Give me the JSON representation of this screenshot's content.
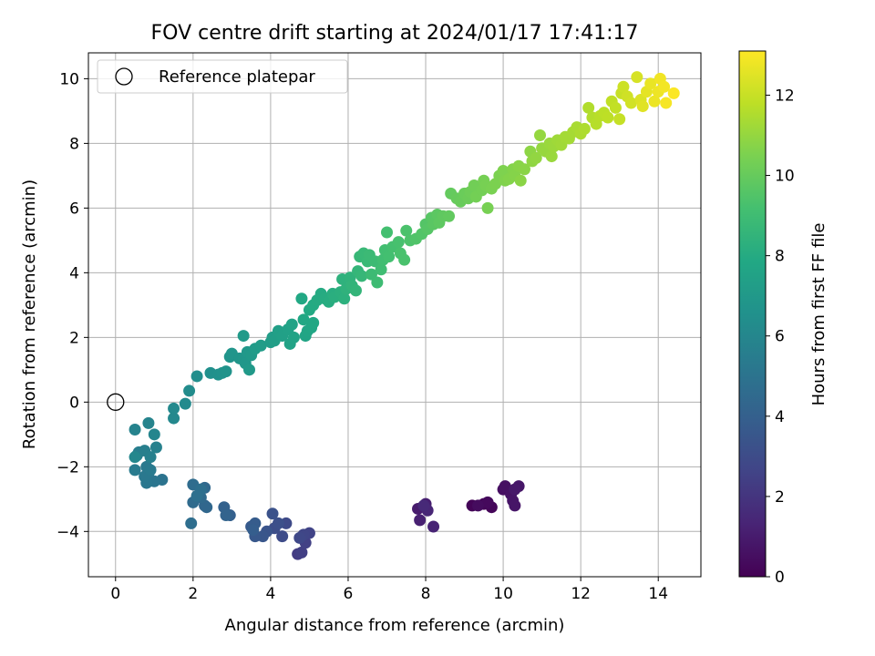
{
  "chart_data": {
    "type": "scatter",
    "title": "FOV centre drift starting at 2024/01/17 17:41:17",
    "xlabel": "Angular distance from reference (arcmin)",
    "ylabel": "Rotation from reference (arcmin)",
    "xlim": [
      -0.7,
      15.1
    ],
    "ylim": [
      -5.4,
      10.8
    ],
    "xticks": [
      0,
      2,
      4,
      6,
      8,
      10,
      12,
      14
    ],
    "yticks": [
      -4,
      -2,
      0,
      2,
      4,
      6,
      8,
      10
    ],
    "xtick_labels": [
      "0",
      "2",
      "4",
      "6",
      "8",
      "10",
      "12",
      "14"
    ],
    "ytick_labels": [
      "−4",
      "−2",
      "0",
      "2",
      "4",
      "6",
      "8",
      "10"
    ],
    "grid": true,
    "legend": {
      "position": "top-left",
      "label": "Reference platepar"
    },
    "reference_point": {
      "x": 0,
      "y": 0
    },
    "colorbar": {
      "label": "Hours from first FF file",
      "min": 0,
      "max": 13.1,
      "ticks": [
        0,
        2,
        4,
        6,
        8,
        10,
        12
      ],
      "tick_labels": [
        "0",
        "2",
        "4",
        "6",
        "8",
        "10",
        "12"
      ],
      "colormap": "viridis"
    },
    "points": [
      [
        9.2,
        -3.2,
        0.1
      ],
      [
        9.5,
        -3.15,
        0.15
      ],
      [
        9.7,
        -3.25,
        0.2
      ],
      [
        9.6,
        -3.1,
        0.3
      ],
      [
        9.35,
        -3.2,
        0.4
      ],
      [
        10.0,
        -2.7,
        0.5
      ],
      [
        10.05,
        -2.6,
        0.55
      ],
      [
        10.2,
        -2.85,
        0.6
      ],
      [
        10.25,
        -3.05,
        0.7
      ],
      [
        10.3,
        -3.2,
        0.75
      ],
      [
        10.4,
        -2.6,
        0.8
      ],
      [
        10.3,
        -2.7,
        0.85
      ],
      [
        7.8,
        -3.3,
        1.0
      ],
      [
        8.0,
        -3.15,
        1.1
      ],
      [
        7.85,
        -3.65,
        1.2
      ],
      [
        8.2,
        -3.85,
        1.3
      ],
      [
        8.05,
        -3.35,
        1.4
      ],
      [
        7.95,
        -3.2,
        1.5
      ],
      [
        4.7,
        -4.7,
        2.3
      ],
      [
        4.8,
        -4.65,
        2.4
      ],
      [
        4.9,
        -4.35,
        2.5
      ],
      [
        5.0,
        -4.05,
        2.6
      ],
      [
        4.85,
        -4.1,
        2.7
      ],
      [
        4.75,
        -4.2,
        2.8
      ],
      [
        4.4,
        -3.75,
        2.9
      ],
      [
        4.3,
        -4.15,
        3.0
      ],
      [
        4.1,
        -3.9,
        3.1
      ],
      [
        4.2,
        -3.75,
        3.2
      ],
      [
        4.05,
        -3.45,
        3.3
      ],
      [
        3.9,
        -4.0,
        3.4
      ],
      [
        3.8,
        -4.15,
        3.5
      ],
      [
        3.6,
        -4.15,
        3.6
      ],
      [
        3.5,
        -3.85,
        3.7
      ],
      [
        3.6,
        -3.75,
        3.8
      ],
      [
        3.55,
        -3.95,
        3.9
      ],
      [
        2.95,
        -3.5,
        4.0
      ],
      [
        2.8,
        -3.25,
        4.1
      ],
      [
        2.85,
        -3.5,
        4.2
      ],
      [
        2.3,
        -3.2,
        4.3
      ],
      [
        2.35,
        -3.25,
        4.35
      ],
      [
        2.3,
        -2.65,
        4.4
      ],
      [
        2.2,
        -2.95,
        4.5
      ],
      [
        2.0,
        -3.1,
        4.55
      ],
      [
        2.0,
        -2.55,
        4.6
      ],
      [
        1.95,
        -3.75,
        4.7
      ],
      [
        2.2,
        -2.7,
        4.75
      ],
      [
        2.1,
        -2.9,
        4.8
      ],
      [
        1.2,
        -2.4,
        5.0
      ],
      [
        1.0,
        -2.45,
        5.1
      ],
      [
        0.85,
        -2.2,
        5.15
      ],
      [
        0.8,
        -2.5,
        5.2
      ],
      [
        0.75,
        -2.3,
        5.25
      ],
      [
        0.8,
        -2.0,
        5.3
      ],
      [
        0.9,
        -2.1,
        5.35
      ],
      [
        0.5,
        -2.1,
        5.4
      ],
      [
        0.55,
        -1.65,
        5.5
      ],
      [
        0.6,
        -1.55,
        5.55
      ],
      [
        0.75,
        -1.5,
        5.6
      ],
      [
        0.9,
        -1.7,
        5.65
      ],
      [
        1.05,
        -1.4,
        5.7
      ],
      [
        0.5,
        -0.85,
        5.8
      ],
      [
        0.85,
        -0.65,
        5.85
      ],
      [
        1.0,
        -1.0,
        5.9
      ],
      [
        0.5,
        -1.7,
        6.0
      ],
      [
        1.5,
        -0.5,
        6.1
      ],
      [
        1.5,
        -0.2,
        6.15
      ],
      [
        1.8,
        -0.05,
        6.2
      ],
      [
        1.9,
        0.35,
        6.3
      ],
      [
        2.1,
        0.8,
        6.4
      ],
      [
        2.45,
        0.9,
        6.5
      ],
      [
        2.65,
        0.85,
        6.55
      ],
      [
        2.75,
        0.9,
        6.6
      ],
      [
        2.85,
        0.95,
        6.65
      ],
      [
        2.95,
        1.4,
        6.7
      ],
      [
        3.0,
        1.5,
        6.75
      ],
      [
        3.2,
        1.35,
        6.8
      ],
      [
        3.3,
        1.3,
        6.85
      ],
      [
        3.35,
        1.2,
        6.9
      ],
      [
        3.4,
        1.55,
        6.95
      ],
      [
        3.45,
        1.0,
        7.0
      ],
      [
        3.5,
        1.45,
        7.0
      ],
      [
        3.3,
        2.05,
        7.05
      ],
      [
        3.6,
        1.65,
        7.1
      ],
      [
        3.75,
        1.75,
        7.15
      ],
      [
        4.0,
        1.85,
        7.2
      ],
      [
        4.05,
        2.0,
        7.25
      ],
      [
        4.1,
        1.9,
        7.3
      ],
      [
        4.2,
        2.2,
        7.35
      ],
      [
        4.3,
        2.05,
        7.4
      ],
      [
        4.45,
        2.25,
        7.45
      ],
      [
        4.5,
        1.8,
        7.5
      ],
      [
        4.55,
        2.4,
        7.55
      ],
      [
        4.6,
        2.0,
        7.6
      ],
      [
        4.9,
        2.05,
        7.65
      ],
      [
        4.95,
        2.2,
        7.7
      ],
      [
        5.05,
        2.3,
        7.75
      ],
      [
        4.85,
        2.55,
        7.8
      ],
      [
        5.1,
        2.45,
        7.8
      ],
      [
        4.8,
        3.2,
        7.85
      ],
      [
        5.0,
        2.85,
        7.9
      ],
      [
        5.1,
        3.0,
        7.95
      ],
      [
        5.2,
        3.15,
        8.0
      ],
      [
        5.3,
        3.35,
        8.0
      ],
      [
        5.4,
        3.2,
        8.05
      ],
      [
        5.5,
        3.1,
        8.1
      ],
      [
        5.6,
        3.35,
        8.15
      ],
      [
        5.65,
        3.25,
        8.2
      ],
      [
        5.8,
        3.4,
        8.25
      ],
      [
        5.9,
        3.2,
        8.3
      ],
      [
        5.85,
        3.8,
        8.35
      ],
      [
        5.95,
        3.5,
        8.4
      ],
      [
        6.05,
        3.85,
        8.45
      ],
      [
        6.1,
        3.6,
        8.5
      ],
      [
        6.2,
        3.45,
        8.55
      ],
      [
        6.25,
        4.05,
        8.6
      ],
      [
        6.35,
        3.9,
        8.65
      ],
      [
        6.3,
        4.5,
        8.7
      ],
      [
        6.4,
        4.6,
        8.75
      ],
      [
        6.5,
        4.35,
        8.8
      ],
      [
        6.55,
        4.55,
        8.85
      ],
      [
        6.7,
        4.35,
        8.9
      ],
      [
        6.6,
        3.95,
        8.9
      ],
      [
        6.75,
        3.7,
        8.95
      ],
      [
        6.85,
        4.1,
        9.0
      ],
      [
        6.9,
        4.4,
        9.05
      ],
      [
        6.95,
        4.7,
        9.1
      ],
      [
        7.0,
        5.25,
        9.15
      ],
      [
        7.05,
        4.5,
        9.15
      ],
      [
        7.15,
        4.8,
        9.2
      ],
      [
        7.3,
        4.95,
        9.25
      ],
      [
        7.35,
        4.6,
        9.3
      ],
      [
        7.45,
        4.4,
        9.3
      ],
      [
        7.5,
        5.3,
        9.35
      ],
      [
        7.6,
        5.0,
        9.4
      ],
      [
        7.75,
        5.05,
        9.45
      ],
      [
        7.9,
        5.2,
        9.5
      ],
      [
        8.0,
        5.5,
        9.55
      ],
      [
        8.05,
        5.35,
        9.6
      ],
      [
        8.15,
        5.7,
        9.65
      ],
      [
        8.2,
        5.5,
        9.7
      ],
      [
        8.3,
        5.8,
        9.75
      ],
      [
        8.35,
        5.55,
        9.8
      ],
      [
        8.45,
        5.75,
        9.85
      ],
      [
        8.6,
        5.75,
        9.9
      ],
      [
        8.65,
        6.45,
        9.95
      ],
      [
        8.8,
        6.3,
        10.0
      ],
      [
        8.9,
        6.2,
        10.05
      ],
      [
        9.0,
        6.45,
        10.1
      ],
      [
        9.1,
        6.3,
        10.15
      ],
      [
        9.15,
        6.5,
        10.2
      ],
      [
        9.25,
        6.7,
        10.25
      ],
      [
        9.3,
        6.35,
        10.3
      ],
      [
        9.45,
        6.55,
        10.3
      ],
      [
        9.5,
        6.85,
        10.35
      ],
      [
        9.55,
        6.7,
        10.4
      ],
      [
        9.6,
        6.0,
        10.4
      ],
      [
        9.7,
        6.6,
        10.45
      ],
      [
        9.8,
        6.75,
        10.5
      ],
      [
        9.9,
        7.0,
        10.5
      ],
      [
        10.0,
        7.15,
        10.55
      ],
      [
        10.05,
        6.85,
        10.6
      ],
      [
        10.15,
        6.9,
        10.65
      ],
      [
        10.25,
        7.2,
        10.65
      ],
      [
        10.3,
        7.0,
        10.7
      ],
      [
        10.4,
        7.3,
        10.75
      ],
      [
        10.45,
        6.85,
        10.8
      ],
      [
        10.55,
        7.2,
        10.8
      ],
      [
        10.7,
        7.75,
        10.85
      ],
      [
        10.75,
        7.45,
        10.9
      ],
      [
        10.85,
        7.55,
        10.95
      ],
      [
        10.95,
        8.25,
        11.0
      ],
      [
        11.0,
        7.85,
        11.0
      ],
      [
        11.1,
        7.75,
        11.05
      ],
      [
        11.2,
        8.0,
        11.1
      ],
      [
        11.25,
        7.6,
        11.1
      ],
      [
        11.3,
        7.9,
        11.15
      ],
      [
        11.4,
        8.1,
        11.2
      ],
      [
        11.5,
        7.95,
        11.25
      ],
      [
        11.6,
        8.2,
        11.3
      ],
      [
        11.7,
        8.15,
        11.3
      ],
      [
        11.8,
        8.35,
        11.35
      ],
      [
        11.9,
        8.5,
        11.4
      ],
      [
        12.0,
        8.3,
        11.45
      ],
      [
        12.1,
        8.45,
        11.5
      ],
      [
        12.2,
        9.1,
        11.55
      ],
      [
        12.3,
        8.8,
        11.6
      ],
      [
        12.4,
        8.6,
        11.65
      ],
      [
        12.5,
        8.85,
        11.7
      ],
      [
        12.6,
        8.95,
        11.75
      ],
      [
        12.7,
        8.8,
        11.8
      ],
      [
        12.8,
        9.3,
        11.85
      ],
      [
        12.9,
        9.1,
        11.9
      ],
      [
        13.0,
        8.75,
        11.95
      ],
      [
        13.05,
        9.55,
        12.0
      ],
      [
        13.1,
        9.75,
        12.1
      ],
      [
        13.2,
        9.45,
        12.15
      ],
      [
        13.3,
        9.25,
        12.2
      ],
      [
        13.45,
        10.05,
        12.3
      ],
      [
        13.55,
        9.35,
        12.4
      ],
      [
        13.6,
        9.15,
        12.5
      ],
      [
        13.7,
        9.6,
        12.6
      ],
      [
        13.8,
        9.85,
        12.7
      ],
      [
        13.9,
        9.3,
        12.75
      ],
      [
        14.0,
        9.6,
        12.8
      ],
      [
        14.05,
        10.0,
        12.85
      ],
      [
        14.15,
        9.75,
        12.9
      ],
      [
        14.2,
        9.25,
        12.95
      ],
      [
        14.4,
        9.55,
        13.05
      ]
    ]
  }
}
